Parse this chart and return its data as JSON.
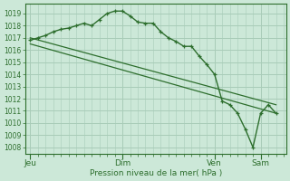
{
  "background_color": "#cce8d8",
  "grid_color": "#a8ccb8",
  "line_color": "#2d6e2d",
  "ylabel_text": "Pression niveau de la mer( hPa )",
  "ylim": [
    1007.5,
    1019.8
  ],
  "yticks": [
    1008,
    1009,
    1010,
    1011,
    1012,
    1013,
    1014,
    1015,
    1016,
    1017,
    1018,
    1019
  ],
  "xtick_labels": [
    "Jeu",
    "Dim",
    "Ven",
    "Sam"
  ],
  "xtick_positions": [
    0,
    36,
    72,
    90
  ],
  "xlim": [
    -2,
    100
  ],
  "total_points": 100,
  "series1_x": [
    0,
    3,
    6,
    9,
    12,
    15,
    18,
    21,
    24,
    27,
    30,
    33,
    36,
    39,
    42,
    45,
    48,
    51,
    54,
    57,
    60,
    63,
    66,
    69,
    72,
    75,
    78,
    81,
    84,
    87,
    90,
    93,
    96
  ],
  "series1_y": [
    1016.8,
    1017.0,
    1017.2,
    1017.5,
    1017.7,
    1017.8,
    1018.0,
    1018.2,
    1018.0,
    1018.5,
    1019.0,
    1019.2,
    1019.2,
    1018.8,
    1018.3,
    1018.2,
    1018.2,
    1017.5,
    1017.0,
    1016.7,
    1016.3,
    1016.3,
    1015.5,
    1014.8,
    1014.0,
    1011.8,
    1011.5,
    1010.8,
    1009.5,
    1008.0,
    1010.8,
    1011.5,
    1010.8
  ],
  "series2_x": [
    0,
    96
  ],
  "series2_y": [
    1017.0,
    1011.5
  ],
  "series3_x": [
    0,
    96
  ],
  "series3_y": [
    1016.5,
    1010.8
  ],
  "minor_x_step": 3
}
